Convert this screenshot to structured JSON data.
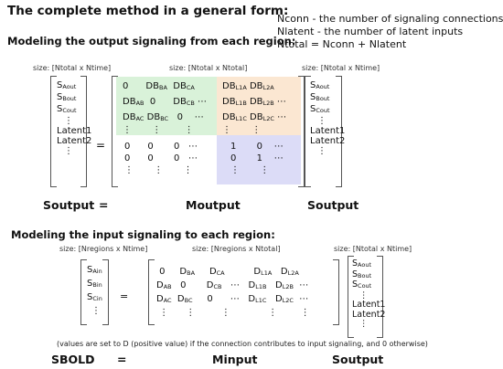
{
  "title": "The complete method in a general form:",
  "definitions": [
    "Nconn - the number of signaling connections",
    "Nlatent - the number of latent inputs",
    "Ntotal = Nconn + Nlatent"
  ],
  "section_output": {
    "heading": "Modeling the output signaling from each region:",
    "size_left": "size: [Ntotal x Ntime]",
    "size_mid": "size: [Ntotal x Ntotal]",
    "size_right": "size: [Ntotal x Ntime]",
    "equals": "=",
    "label_left": "Soutput",
    "label_mid": "Moutput",
    "label_right": "Soutput",
    "label_eq": "="
  },
  "section_input": {
    "heading": "Modeling the input signaling to each region:",
    "size_left": "size: [Nregions x Ntime]",
    "size_mid": "size: [Nregions x Ntotal]",
    "size_right": "size: [Ntotal x Ntime]",
    "equals": "=",
    "note": "(values are set to D (positive value) if the connection contributes to input signaling, and 0 otherwise)",
    "label_left": "SBOLD",
    "label_mid": "Minput",
    "label_right": "Soutput",
    "label_eq": "="
  },
  "colors": {
    "green": "#d9f2d9",
    "orange": "#fbe7d2",
    "blue": "#dcdcf7"
  }
}
